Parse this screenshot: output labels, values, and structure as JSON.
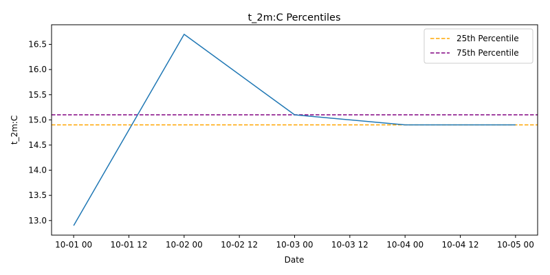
{
  "chart_data": {
    "type": "line",
    "title": "t_2m:C Percentiles",
    "xlabel": "Date",
    "ylabel": "t_2m:C",
    "x": [
      "2023-10-01 00:00",
      "2023-10-02 00:00",
      "2023-10-03 00:00",
      "2023-10-04 00:00",
      "2023-10-05 00:00"
    ],
    "series": [
      {
        "values": [
          12.9,
          16.7,
          15.1,
          14.9,
          14.9
        ],
        "color": "#1f77b4",
        "style": "solid"
      }
    ],
    "reference_lines": [
      {
        "name": "25th Percentile",
        "y": 14.9,
        "color": "#ffa500",
        "style": "dashed"
      },
      {
        "name": "75th Percentile",
        "y": 15.1,
        "color": "#800080",
        "style": "dashed"
      }
    ],
    "xticks": [
      "10-01 00",
      "10-01 12",
      "10-02 00",
      "10-02 12",
      "10-03 00",
      "10-03 12",
      "10-04 00",
      "10-04 12",
      "10-05 00"
    ],
    "yticks": [
      "13.0",
      "13.5",
      "14.0",
      "14.5",
      "15.0",
      "15.5",
      "16.0",
      "16.5"
    ],
    "ylim": [
      12.71,
      16.89
    ],
    "grid": false,
    "legend_position": "top-right"
  }
}
